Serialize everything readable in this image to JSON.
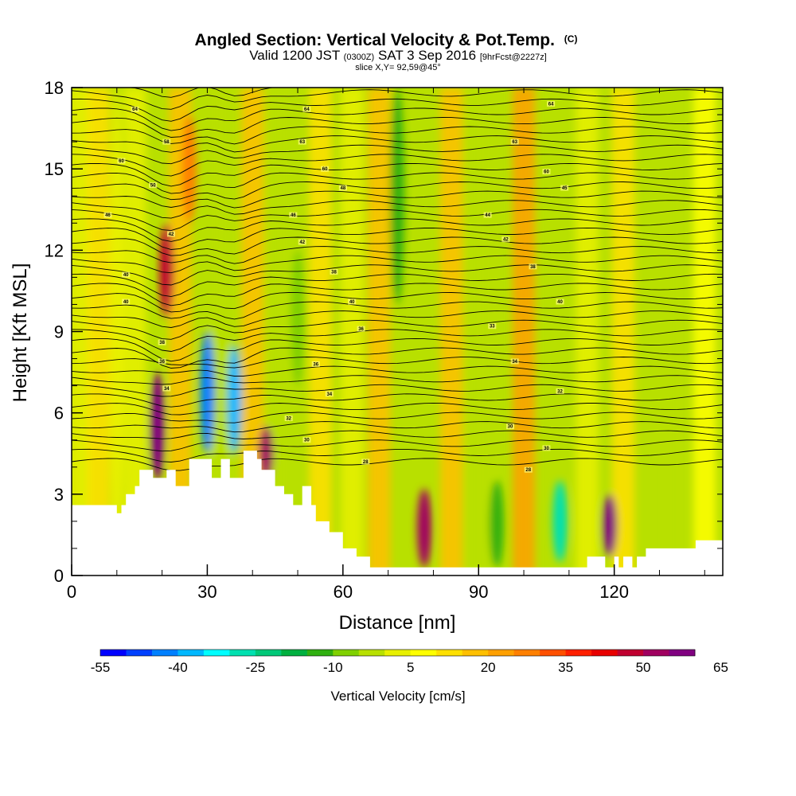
{
  "chart_data": {
    "type": "heatmap",
    "title": "Angled Section: Vertical Velocity & Pot.Temp.",
    "title_suffix": "(C)",
    "subtitle": {
      "valid_prefix": "Valid 1200 JST",
      "utc": "(0300Z)",
      "date": "SAT 3 Sep 2016",
      "forecast": "[9hrFcst@2227z]"
    },
    "slice_label": "slice X,Y= 92,59@45°",
    "xlabel": "Distance [nm]",
    "ylabel": "Height [Kft MSL]",
    "xlim": [
      0,
      144
    ],
    "ylim": [
      0,
      18
    ],
    "x_ticks": [
      0,
      30,
      60,
      90,
      120
    ],
    "y_ticks": [
      0,
      3,
      6,
      9,
      12,
      15,
      18
    ],
    "colorbar": {
      "label": "Vertical Velocity [cm/s]",
      "tick_labels": [
        "-55",
        "-40",
        "-25",
        "-10",
        "5",
        "20",
        "35",
        "50",
        "65"
      ],
      "colors": [
        "#0000ff",
        "#0040ff",
        "#0080ff",
        "#00b8ff",
        "#00ffff",
        "#00e0b0",
        "#00c878",
        "#00b040",
        "#30b010",
        "#80d000",
        "#b8e000",
        "#e8f000",
        "#ffff00",
        "#ffe000",
        "#ffc000",
        "#ffa000",
        "#ff8000",
        "#ff5000",
        "#ff2000",
        "#e80000",
        "#c00030",
        "#a00060",
        "#800080"
      ]
    },
    "terrain": {
      "x": [
        0,
        10,
        10,
        11,
        11,
        12,
        12,
        14,
        14,
        15,
        15,
        18,
        18,
        21,
        21,
        23,
        23,
        26,
        26,
        31,
        31,
        33,
        33,
        35,
        35,
        38,
        38,
        41,
        41,
        42,
        42,
        45,
        45,
        47,
        47,
        49,
        49,
        51,
        51,
        53,
        53,
        54,
        54,
        57,
        57,
        60,
        60,
        63,
        63,
        66,
        66,
        67,
        67,
        68,
        68,
        70,
        70,
        73,
        73,
        76,
        76,
        114,
        114,
        116,
        116,
        118,
        118,
        120,
        120,
        121,
        121,
        122,
        122,
        124,
        124,
        125,
        125,
        127,
        127,
        138,
        138,
        144
      ],
      "y": [
        2.6,
        2.6,
        2.3,
        2.3,
        2.6,
        2.6,
        3.0,
        3.0,
        3.3,
        3.3,
        3.9,
        3.9,
        3.6,
        3.6,
        3.9,
        3.9,
        3.3,
        3.3,
        4.3,
        4.3,
        3.6,
        3.6,
        4.3,
        4.3,
        3.6,
        3.6,
        4.6,
        4.6,
        4.3,
        4.3,
        3.9,
        3.9,
        3.3,
        3.3,
        3.0,
        3.0,
        2.6,
        2.6,
        3.3,
        3.3,
        2.6,
        2.6,
        2.0,
        2.0,
        1.6,
        1.6,
        1.0,
        1.0,
        0.7,
        0.7,
        0.3,
        0.3,
        0.3,
        0.3,
        0.3,
        0.3,
        0.3,
        0.3,
        0.3,
        0.3,
        0.3,
        0.3,
        0.7,
        0.7,
        0.7,
        0.7,
        0.3,
        0.3,
        0.7,
        0.7,
        0.3,
        0.3,
        0.7,
        0.7,
        0.3,
        0.3,
        0.7,
        0.7,
        1.0,
        1.0,
        1.3,
        1.3
      ]
    },
    "wind_field": [
      {
        "x": 10,
        "y0": 0,
        "y1": 18,
        "value": -2
      },
      {
        "x": 19,
        "y0": 3.5,
        "y1": 7.5,
        "value": 55
      },
      {
        "x": 21,
        "y0": 9.5,
        "y1": 13,
        "value": 42
      },
      {
        "x": 26,
        "y0": 13,
        "y1": 17,
        "value": 22
      },
      {
        "x": 30,
        "y0": 4.5,
        "y1": 9,
        "value": -50
      },
      {
        "x": 36,
        "y0": 4.5,
        "y1": 8.5,
        "value": -42
      },
      {
        "x": 43,
        "y0": 3.5,
        "y1": 5.5,
        "value": 45
      },
      {
        "x": 50,
        "y0": 7,
        "y1": 12,
        "value": -15
      },
      {
        "x": 72,
        "y0": 10,
        "y1": 18,
        "value": -18
      },
      {
        "x": 78,
        "y0": 0.3,
        "y1": 3.2,
        "value": 48
      },
      {
        "x": 94,
        "y0": 0.3,
        "y1": 3.5,
        "value": -20
      },
      {
        "x": 108,
        "y0": 0.5,
        "y1": 3.5,
        "value": -35
      },
      {
        "x": 119,
        "y0": 0.7,
        "y1": 3.0,
        "value": 50
      },
      {
        "x": 128,
        "y0": 5,
        "y1": 18,
        "value": -10
      }
    ],
    "contour_labels": [
      {
        "x": 14,
        "y": 17.2,
        "text": "64"
      },
      {
        "x": 52,
        "y": 17.2,
        "text": "64"
      },
      {
        "x": 106,
        "y": 17.4,
        "text": "64"
      },
      {
        "x": 21,
        "y": 16.0,
        "text": "58"
      },
      {
        "x": 51,
        "y": 16.0,
        "text": "63"
      },
      {
        "x": 98,
        "y": 16.0,
        "text": "63"
      },
      {
        "x": 11,
        "y": 15.3,
        "text": "60"
      },
      {
        "x": 56,
        "y": 15.0,
        "text": "60"
      },
      {
        "x": 105,
        "y": 14.9,
        "text": "60"
      },
      {
        "x": 18,
        "y": 14.4,
        "text": "50"
      },
      {
        "x": 60,
        "y": 14.3,
        "text": "48"
      },
      {
        "x": 109,
        "y": 14.3,
        "text": "45"
      },
      {
        "x": 8,
        "y": 13.3,
        "text": "46"
      },
      {
        "x": 49,
        "y": 13.3,
        "text": "46"
      },
      {
        "x": 92,
        "y": 13.3,
        "text": "44"
      },
      {
        "x": 22,
        "y": 12.6,
        "text": "42"
      },
      {
        "x": 51,
        "y": 12.3,
        "text": "42"
      },
      {
        "x": 96,
        "y": 12.4,
        "text": "42"
      },
      {
        "x": 12,
        "y": 11.1,
        "text": "40"
      },
      {
        "x": 58,
        "y": 11.2,
        "text": "38"
      },
      {
        "x": 102,
        "y": 11.4,
        "text": "38"
      },
      {
        "x": 12,
        "y": 10.1,
        "text": "40"
      },
      {
        "x": 62,
        "y": 10.1,
        "text": "40"
      },
      {
        "x": 108,
        "y": 10.1,
        "text": "40"
      },
      {
        "x": 20,
        "y": 8.6,
        "text": "38"
      },
      {
        "x": 64,
        "y": 9.1,
        "text": "36"
      },
      {
        "x": 93,
        "y": 9.2,
        "text": "33"
      },
      {
        "x": 20,
        "y": 7.9,
        "text": "36"
      },
      {
        "x": 54,
        "y": 7.8,
        "text": "36"
      },
      {
        "x": 98,
        "y": 7.9,
        "text": "34"
      },
      {
        "x": 21,
        "y": 6.9,
        "text": "34"
      },
      {
        "x": 57,
        "y": 6.7,
        "text": "34"
      },
      {
        "x": 108,
        "y": 6.8,
        "text": "32"
      },
      {
        "x": 48,
        "y": 5.8,
        "text": "32"
      },
      {
        "x": 97,
        "y": 5.5,
        "text": "30"
      },
      {
        "x": 52,
        "y": 5.0,
        "text": "30"
      },
      {
        "x": 105,
        "y": 4.7,
        "text": "30"
      },
      {
        "x": 65,
        "y": 4.2,
        "text": "28"
      },
      {
        "x": 101,
        "y": 3.9,
        "text": "28"
      }
    ]
  }
}
